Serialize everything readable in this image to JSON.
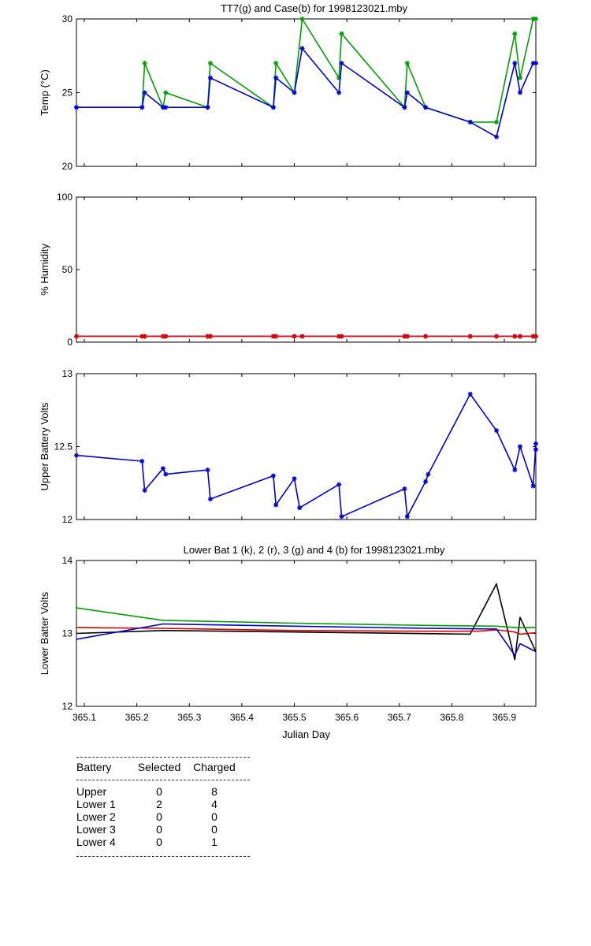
{
  "chart_data": [
    {
      "type": "line",
      "title": "TT7(g) and Case(b) for 1998123021.mby",
      "xlabel": "",
      "ylabel": "Temp  (°C)",
      "xlim": [
        365.085,
        365.96
      ],
      "ylim": [
        20,
        30
      ],
      "yticks": [
        20,
        25,
        30
      ],
      "series": [
        {
          "color": "#00a000",
          "marker": "star",
          "x": [
            365.085,
            365.21,
            365.215,
            365.25,
            365.255,
            365.335,
            365.34,
            365.46,
            365.465,
            365.5,
            365.515,
            365.585,
            365.59,
            365.71,
            365.715,
            365.75,
            365.835,
            365.885,
            365.92,
            365.93,
            365.955,
            365.96
          ],
          "y": [
            24,
            24,
            27,
            24,
            25,
            24,
            27,
            24,
            27,
            25,
            30,
            26,
            29,
            24,
            27,
            24,
            23,
            23,
            29,
            26,
            30,
            30
          ]
        },
        {
          "color": "#0000d0",
          "marker": "star",
          "x": [
            365.085,
            365.21,
            365.215,
            365.25,
            365.255,
            365.335,
            365.34,
            365.46,
            365.465,
            365.5,
            365.515,
            365.585,
            365.59,
            365.71,
            365.715,
            365.75,
            365.835,
            365.885,
            365.92,
            365.93,
            365.955,
            365.96
          ],
          "y": [
            24,
            24,
            25,
            24,
            24,
            24,
            26,
            24,
            26,
            25,
            28,
            25,
            27,
            24,
            25,
            24,
            23,
            22,
            27,
            25,
            27,
            27
          ]
        }
      ]
    },
    {
      "type": "line",
      "title": "",
      "xlabel": "",
      "ylabel": "% Humidity",
      "xlim": [
        365.085,
        365.96
      ],
      "ylim": [
        0,
        100
      ],
      "yticks": [
        0,
        50,
        100
      ],
      "series": [
        {
          "color": "#0000d0",
          "marker": "star",
          "x": [
            365.085,
            365.21,
            365.215,
            365.25,
            365.255,
            365.335,
            365.34,
            365.46,
            365.465,
            365.5,
            365.515,
            365.585,
            365.59,
            365.71,
            365.715,
            365.75,
            365.835,
            365.885,
            365.92,
            365.93,
            365.955,
            365.96
          ],
          "y": [
            4,
            4,
            4,
            4,
            4,
            4,
            4,
            4,
            4,
            4,
            4,
            4,
            4,
            4,
            4,
            4,
            4,
            4,
            4,
            4,
            4,
            4
          ]
        },
        {
          "color": "#e00000",
          "marker": "star",
          "x": [
            365.085,
            365.21,
            365.215,
            365.25,
            365.255,
            365.335,
            365.34,
            365.46,
            365.465,
            365.5,
            365.515,
            365.585,
            365.59,
            365.71,
            365.715,
            365.75,
            365.835,
            365.885,
            365.92,
            365.93,
            365.955,
            365.96
          ],
          "y": [
            4,
            4,
            4,
            4,
            4,
            4,
            4,
            4,
            4,
            4,
            4,
            4,
            4,
            4,
            4,
            4,
            4,
            4,
            4,
            4,
            4,
            4
          ]
        }
      ]
    },
    {
      "type": "line",
      "title": "",
      "xlabel": "",
      "ylabel": "Upper Battery Volts",
      "xlim": [
        365.085,
        365.96
      ],
      "ylim": [
        12,
        13
      ],
      "yticks": [
        12,
        12.5,
        13
      ],
      "series": [
        {
          "color": "#0000d0",
          "marker": "star",
          "x": [
            365.085,
            365.21,
            365.215,
            365.25,
            365.255,
            365.335,
            365.34,
            365.46,
            365.465,
            365.5,
            365.51,
            365.585,
            365.59,
            365.71,
            365.715,
            365.75,
            365.755,
            365.835,
            365.885,
            365.92,
            365.93,
            365.955,
            365.96,
            365.96
          ],
          "y": [
            12.44,
            12.4,
            12.2,
            12.35,
            12.31,
            12.34,
            12.14,
            12.3,
            12.1,
            12.28,
            12.08,
            12.24,
            12.02,
            12.21,
            12.02,
            12.26,
            12.31,
            12.86,
            12.61,
            12.34,
            12.5,
            12.23,
            12.52,
            12.48
          ]
        }
      ]
    },
    {
      "type": "line",
      "title": "Lower Bat 1 (k), 2 (r), 3 (g) and 4 (b) for 1998123021.mby",
      "xlabel": "Julian Day",
      "ylabel": "Lower Batter Volts",
      "xlim": [
        365.085,
        365.96
      ],
      "ylim": [
        12,
        14
      ],
      "yticks": [
        12,
        13,
        14
      ],
      "xticks": [
        365.1,
        365.2,
        365.3,
        365.4,
        365.5,
        365.6,
        365.7,
        365.8,
        365.9
      ],
      "xticklabels": [
        "365.1",
        "365.2",
        "365.3",
        "365.4",
        "365.5",
        "365.6",
        "365.7",
        "365.8",
        "365.9"
      ],
      "series": [
        {
          "color": "#000000",
          "marker": "none",
          "x": [
            365.085,
            365.25,
            365.5,
            365.835,
            365.885,
            365.92,
            365.93,
            365.96
          ],
          "y": [
            13.0,
            13.04,
            13.02,
            12.99,
            13.68,
            12.64,
            13.22,
            12.75
          ]
        },
        {
          "color": "#e00000",
          "marker": "none",
          "x": [
            365.085,
            365.25,
            365.5,
            365.75,
            365.85,
            365.885,
            365.92,
            365.93,
            365.96
          ],
          "y": [
            13.08,
            13.07,
            13.04,
            13.03,
            13.03,
            13.05,
            13.02,
            12.99,
            13.01
          ]
        },
        {
          "color": "#00a000",
          "marker": "none",
          "x": [
            365.085,
            365.25,
            365.5,
            365.75,
            365.885,
            365.92,
            365.96
          ],
          "y": [
            13.35,
            13.18,
            13.14,
            13.11,
            13.1,
            13.08,
            13.08
          ]
        },
        {
          "color": "#0000d0",
          "marker": "none",
          "x": [
            365.085,
            365.25,
            365.5,
            365.75,
            365.885,
            365.92,
            365.93,
            365.96
          ],
          "y": [
            12.92,
            13.13,
            13.1,
            13.07,
            13.06,
            12.7,
            12.86,
            12.75
          ]
        }
      ]
    }
  ],
  "battery_table": {
    "headers": [
      "Battery",
      "Selected",
      "Charged"
    ],
    "rows": [
      [
        "Upper",
        "0",
        "8"
      ],
      [
        "Lower 1",
        "2",
        "4"
      ],
      [
        "Lower 2",
        "0",
        "0"
      ],
      [
        "Lower 3",
        "0",
        "0"
      ],
      [
        "Lower 4",
        "0",
        "1"
      ]
    ]
  }
}
